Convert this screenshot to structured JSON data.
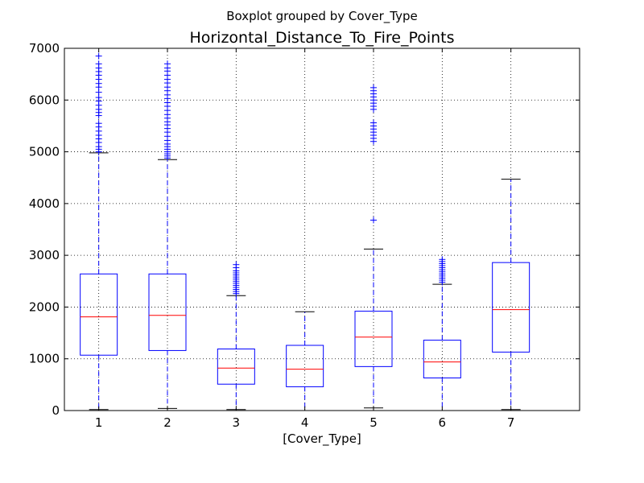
{
  "chart_data": {
    "type": "boxplot",
    "suptitle": "Boxplot grouped by Cover_Type",
    "title": "Horizontal_Distance_To_Fire_Points",
    "xlabel": "[Cover_Type]",
    "ylabel": "",
    "ylim": [
      0,
      7000
    ],
    "yticks": [
      0,
      1000,
      2000,
      3000,
      4000,
      5000,
      6000,
      7000
    ],
    "grid": true,
    "colors": {
      "box": "#0000ff",
      "median": "#ff0000",
      "whisker": "#0000ff",
      "cap": "#000000",
      "flier": "#0000ff",
      "grid": "#000000"
    },
    "categories": [
      "1",
      "2",
      "3",
      "4",
      "5",
      "6",
      "7"
    ],
    "boxes": [
      {
        "label": "1",
        "whislo": 20,
        "q1": 1070,
        "med": 1810,
        "q3": 2640,
        "whishi": 4980,
        "fliers": [
          5000,
          5050,
          5100,
          5180,
          5250,
          5320,
          5400,
          5480,
          5550,
          5700,
          5760,
          5820,
          5900,
          5980,
          6050,
          6150,
          6250,
          6320,
          6400,
          6480,
          6550,
          6620,
          6700,
          6850
        ]
      },
      {
        "label": "2",
        "whislo": 40,
        "q1": 1160,
        "med": 1840,
        "q3": 2640,
        "whishi": 4850,
        "fliers": [
          4880,
          4920,
          4960,
          5000,
          5050,
          5100,
          5150,
          5220,
          5300,
          5380,
          5450,
          5520,
          5580,
          5650,
          5720,
          5800,
          5880,
          5950,
          6030,
          6100,
          6180,
          6250,
          6330,
          6400,
          6480,
          6560,
          6620,
          6700
        ]
      },
      {
        "label": "3",
        "whislo": 20,
        "q1": 510,
        "med": 820,
        "q3": 1190,
        "whishi": 2220,
        "fliers": [
          2260,
          2300,
          2340,
          2380,
          2420,
          2460,
          2500,
          2540,
          2580,
          2620,
          2660,
          2700,
          2760,
          2820
        ]
      },
      {
        "label": "4",
        "whislo": 0,
        "q1": 460,
        "med": 800,
        "q3": 1260,
        "whishi": 1910,
        "fliers": []
      },
      {
        "label": "5",
        "whislo": 50,
        "q1": 850,
        "med": 1420,
        "q3": 1920,
        "whishi": 3120,
        "fliers": [
          3680,
          5200,
          5260,
          5320,
          5380,
          5440,
          5500,
          5560,
          5820,
          5880,
          5940,
          6000,
          6060,
          6120,
          6180,
          6240
        ]
      },
      {
        "label": "6",
        "whislo": 0,
        "q1": 630,
        "med": 940,
        "q3": 1360,
        "whishi": 2440,
        "fliers": [
          2480,
          2520,
          2560,
          2600,
          2640,
          2680,
          2720,
          2760,
          2800,
          2840,
          2880,
          2920
        ]
      },
      {
        "label": "7",
        "whislo": 20,
        "q1": 1130,
        "med": 1950,
        "q3": 2860,
        "whishi": 4470,
        "fliers": []
      }
    ]
  }
}
